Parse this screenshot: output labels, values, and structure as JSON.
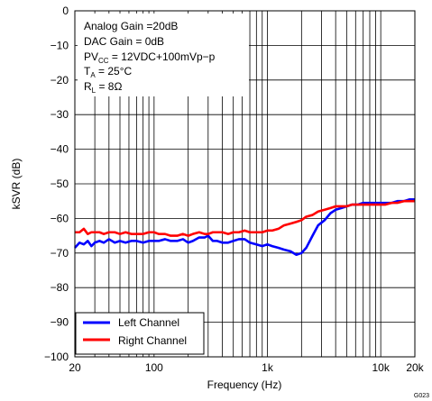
{
  "chart_data": {
    "type": "line",
    "title": "",
    "xlabel": "Frequency (Hz)",
    "ylabel": "kSVR (dB)",
    "xscale": "log",
    "xlim": [
      20,
      20000
    ],
    "ylim": [
      -100,
      0
    ],
    "grid": true,
    "legend_position": "bottom-left",
    "conditions": {
      "line1": "Analog Gain =20dB",
      "line2": "DAC Gain = 0dB",
      "line3_main": "PV",
      "line3_sub": "CC",
      "line3_rest": " = 12VDC+100mVp−p",
      "line4_main": "T",
      "line4_sub": "A",
      "line4_rest": " = 25°C",
      "line5_main": "R",
      "line5_sub": "L",
      "line5_rest": " = 8Ω"
    },
    "figure_code": "G023",
    "x_ticks": [
      {
        "value": 20,
        "label": "20"
      },
      {
        "value": 100,
        "label": "100"
      },
      {
        "value": 1000,
        "label": "1k"
      },
      {
        "value": 10000,
        "label": "10k"
      },
      {
        "value": 20000,
        "label": "20k"
      }
    ],
    "y_ticks": [
      {
        "value": 0,
        "label": "0"
      },
      {
        "value": -10,
        "label": "−10"
      },
      {
        "value": -20,
        "label": "−20"
      },
      {
        "value": -30,
        "label": "−30"
      },
      {
        "value": -40,
        "label": "−40"
      },
      {
        "value": -50,
        "label": "−50"
      },
      {
        "value": -60,
        "label": "−60"
      },
      {
        "value": -70,
        "label": "−70"
      },
      {
        "value": -80,
        "label": "−80"
      },
      {
        "value": -90,
        "label": "−90"
      },
      {
        "value": -100,
        "label": "−100"
      }
    ],
    "series": [
      {
        "name": "Left Channel",
        "color": "#0000ff",
        "x": [
          20,
          22,
          24,
          26,
          28,
          30,
          33,
          36,
          40,
          45,
          50,
          56,
          63,
          70,
          80,
          90,
          100,
          110,
          125,
          140,
          160,
          180,
          200,
          220,
          250,
          280,
          300,
          330,
          360,
          400,
          450,
          500,
          560,
          630,
          700,
          800,
          900,
          1000,
          1100,
          1250,
          1400,
          1600,
          1800,
          2000,
          2200,
          2500,
          2800,
          3200,
          3600,
          4000,
          4500,
          5000,
          5600,
          6300,
          7000,
          8000,
          9000,
          10000,
          11000,
          12500,
          14000,
          16000,
          18000,
          20000
        ],
        "y": [
          -68.5,
          -67,
          -67.5,
          -66.5,
          -68,
          -67,
          -66.5,
          -67,
          -66,
          -67,
          -66.5,
          -67,
          -66.5,
          -66.5,
          -67,
          -66.5,
          -66.5,
          -66.5,
          -66,
          -66.5,
          -66.5,
          -66,
          -67,
          -66.5,
          -65.5,
          -65.5,
          -65,
          -66.5,
          -66.5,
          -67,
          -67,
          -66.5,
          -66,
          -66,
          -67,
          -67.5,
          -68,
          -67.5,
          -68,
          -68.5,
          -69,
          -69.5,
          -70.5,
          -70,
          -68.5,
          -65,
          -62,
          -60.5,
          -58.5,
          -57.5,
          -57,
          -56.5,
          -56,
          -56,
          -55.5,
          -55.5,
          -55.5,
          -55.5,
          -55.5,
          -55.5,
          -55,
          -55,
          -54.5,
          -54.5
        ]
      },
      {
        "name": "Right Channel",
        "color": "#ff0000",
        "x": [
          20,
          22,
          24,
          26,
          28,
          30,
          33,
          36,
          40,
          45,
          50,
          56,
          63,
          70,
          80,
          90,
          100,
          110,
          125,
          140,
          160,
          180,
          200,
          220,
          250,
          280,
          300,
          330,
          360,
          400,
          450,
          500,
          560,
          630,
          700,
          800,
          900,
          1000,
          1100,
          1250,
          1400,
          1600,
          1800,
          2000,
          2200,
          2500,
          2800,
          3200,
          3600,
          4000,
          4500,
          5000,
          5600,
          6300,
          7000,
          8000,
          9000,
          10000,
          11000,
          12500,
          14000,
          16000,
          18000,
          20000
        ],
        "y": [
          -64,
          -64,
          -63,
          -64.5,
          -64,
          -64,
          -64,
          -64.5,
          -64,
          -64,
          -64.5,
          -64,
          -64.5,
          -64.5,
          -64.5,
          -64,
          -64,
          -64.5,
          -64.5,
          -65,
          -65,
          -64.5,
          -65,
          -64.5,
          -64,
          -64.5,
          -64.5,
          -64,
          -64,
          -64,
          -64.5,
          -64,
          -64,
          -63.5,
          -64,
          -64,
          -64,
          -63.5,
          -63.5,
          -63,
          -62,
          -61.5,
          -61,
          -60.5,
          -59.5,
          -59,
          -58,
          -57.5,
          -57,
          -56.5,
          -56.5,
          -56.5,
          -56,
          -56,
          -56,
          -56,
          -56,
          -56,
          -56,
          -55.5,
          -55.5,
          -55,
          -55,
          -55
        ]
      }
    ]
  }
}
